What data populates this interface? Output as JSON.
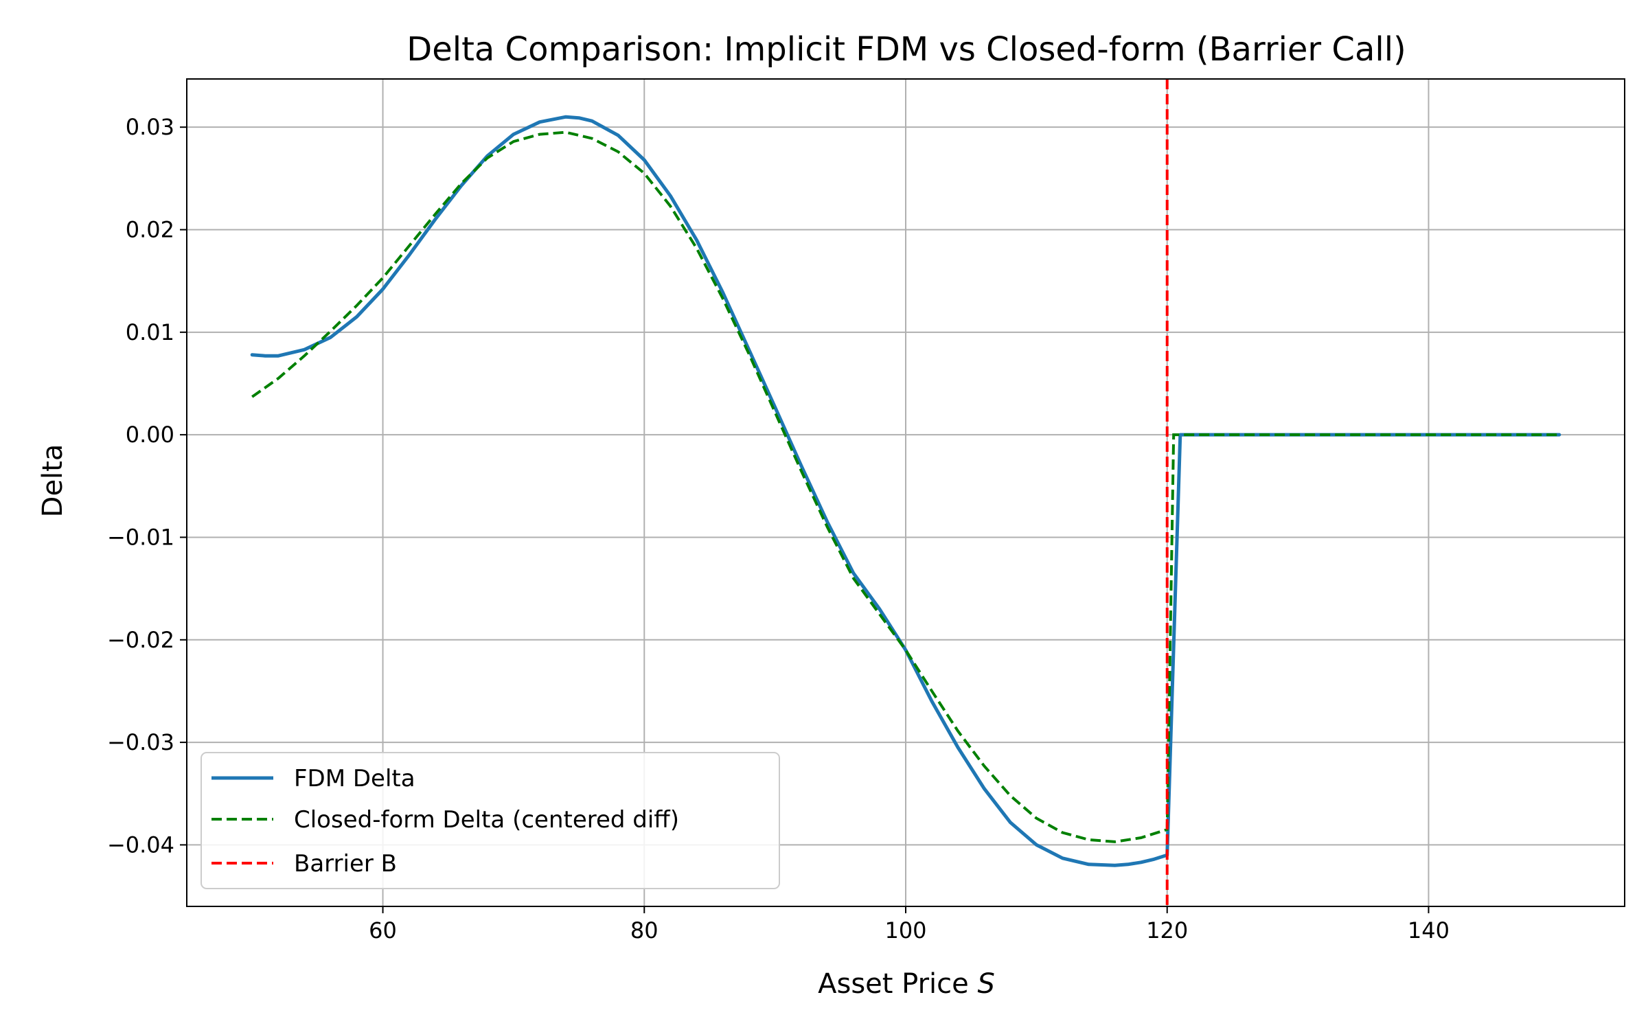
{
  "chart_data": {
    "type": "line",
    "title": "Delta Comparison: Implicit FDM vs Closed-form (Barrier Call)",
    "xlabel": "Asset Price",
    "xlabel_var": "S",
    "ylabel": "Delta",
    "xlim": [
      45,
      155
    ],
    "ylim": [
      -0.046,
      0.0347
    ],
    "xticks": [
      60,
      80,
      100,
      120,
      140
    ],
    "xtick_labels": [
      "60",
      "80",
      "100",
      "120",
      "140"
    ],
    "yticks": [
      0.03,
      0.02,
      0.01,
      0.0,
      -0.01,
      -0.02,
      -0.03,
      -0.04
    ],
    "ytick_labels": [
      "0.03",
      "0.02",
      "0.01",
      "0.00",
      "−0.01",
      "−0.02",
      "−0.03",
      "−0.04"
    ],
    "grid": true,
    "legend_position": "lower-left",
    "series": [
      {
        "name": "FDM Delta",
        "color": "#1f77b4",
        "style": "solid",
        "x": [
          50,
          51,
          52,
          54,
          56,
          58,
          60,
          62,
          64,
          66,
          68,
          70,
          72,
          74,
          75,
          76,
          78,
          80,
          82,
          84,
          86,
          88,
          90,
          92,
          94,
          96,
          98,
          100,
          102,
          104,
          106,
          108,
          110,
          112,
          114,
          116,
          117,
          118,
          119,
          120,
          121,
          122,
          130,
          140,
          150
        ],
        "y": [
          0.0078,
          0.0077,
          0.0077,
          0.0083,
          0.0095,
          0.0115,
          0.0142,
          0.0175,
          0.021,
          0.0243,
          0.0272,
          0.0293,
          0.0305,
          0.031,
          0.0309,
          0.0306,
          0.0292,
          0.0268,
          0.0233,
          0.019,
          0.0139,
          0.0083,
          0.0027,
          -0.003,
          -0.0085,
          -0.0135,
          -0.017,
          -0.021,
          -0.026,
          -0.0305,
          -0.0345,
          -0.0378,
          -0.04,
          -0.0413,
          -0.0419,
          -0.042,
          -0.0419,
          -0.0417,
          -0.0414,
          -0.041,
          0.0,
          0.0,
          0.0,
          0.0,
          0.0
        ]
      },
      {
        "name": "Closed-form Delta (centered diff)",
        "color": "#008000",
        "style": "dashed",
        "x": [
          50,
          52,
          54,
          56,
          58,
          60,
          62,
          64,
          66,
          68,
          70,
          72,
          74,
          76,
          78,
          80,
          82,
          84,
          86,
          88,
          90,
          92,
          94,
          96,
          98,
          100,
          102,
          104,
          106,
          108,
          110,
          112,
          114,
          116,
          118,
          120,
          120.5,
          122,
          130,
          140,
          150
        ],
        "y": [
          0.0037,
          0.0055,
          0.0077,
          0.0101,
          0.0126,
          0.0153,
          0.0184,
          0.0215,
          0.0245,
          0.027,
          0.0286,
          0.0293,
          0.0295,
          0.0289,
          0.0276,
          0.0255,
          0.0223,
          0.0182,
          0.0133,
          0.0079,
          0.0022,
          -0.0035,
          -0.009,
          -0.014,
          -0.0175,
          -0.021,
          -0.025,
          -0.0289,
          -0.0323,
          -0.0352,
          -0.0374,
          -0.0388,
          -0.0395,
          -0.0397,
          -0.0393,
          -0.0385,
          0.0,
          0.0,
          0.0,
          0.0,
          0.0
        ]
      },
      {
        "name": "Barrier B",
        "color": "#ff0000",
        "style": "dashed",
        "vline_x": 120
      }
    ]
  }
}
